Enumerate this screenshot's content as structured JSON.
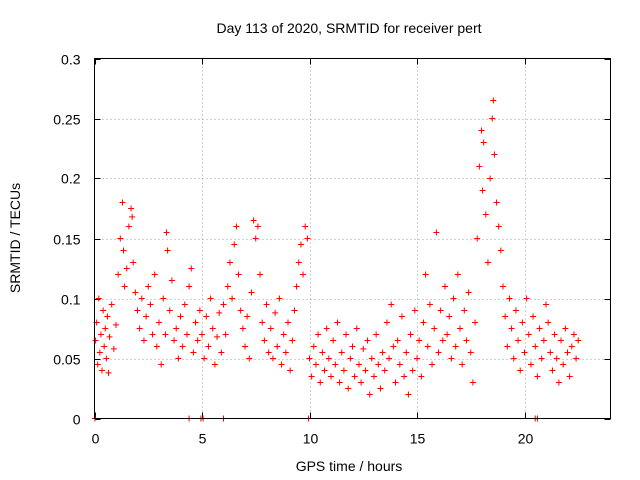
{
  "chart_data": {
    "type": "scatter",
    "title": "Day 113 of 2020, SRMTID for receiver pert",
    "xlabel": "GPS time / hours",
    "ylabel": "SRMTID / TECUs",
    "xlim": [
      0,
      24
    ],
    "ylim": [
      0,
      0.3
    ],
    "x_ticks": [
      0,
      5,
      10,
      15,
      20
    ],
    "x_tick_labels": [
      "0",
      "5",
      "10",
      "15",
      "20"
    ],
    "y_ticks": [
      0,
      0.05,
      0.1,
      0.15,
      0.2,
      0.25,
      0.3
    ],
    "y_tick_labels": [
      "0",
      "0.05",
      "0.1",
      "0.15",
      "0.2",
      "0.25",
      "0.3"
    ],
    "grid": true,
    "marker": "plus",
    "color": "#ff0000",
    "series": [
      {
        "name": "SRMTID",
        "points": [
          [
            0.05,
            0.065
          ],
          [
            0.1,
            0.08
          ],
          [
            0.15,
            0.045
          ],
          [
            0.2,
            0.1
          ],
          [
            0.25,
            0.055
          ],
          [
            0.3,
            0.07
          ],
          [
            0.35,
            0.04
          ],
          [
            0.4,
            0.09
          ],
          [
            0.45,
            0.06
          ],
          [
            0.5,
            0.075
          ],
          [
            0.55,
            0.05
          ],
          [
            0.6,
            0.085
          ],
          [
            0.65,
            0.038
          ],
          [
            0.7,
            0.068
          ],
          [
            0.8,
            0.095
          ],
          [
            0.9,
            0.058
          ],
          [
            1.0,
            0.078
          ],
          [
            1.1,
            0.12
          ],
          [
            1.2,
            0.15
          ],
          [
            1.3,
            0.18
          ],
          [
            1.35,
            0.14
          ],
          [
            1.4,
            0.11
          ],
          [
            1.5,
            0.125
          ],
          [
            1.6,
            0.16
          ],
          [
            1.7,
            0.175
          ],
          [
            1.75,
            0.168
          ],
          [
            1.8,
            0.13
          ],
          [
            1.9,
            0.105
          ],
          [
            2.0,
            0.09
          ],
          [
            2.1,
            0.075
          ],
          [
            2.2,
            0.1
          ],
          [
            2.3,
            0.065
          ],
          [
            2.4,
            0.085
          ],
          [
            2.5,
            0.11
          ],
          [
            2.6,
            0.095
          ],
          [
            2.7,
            0.07
          ],
          [
            2.8,
            0.12
          ],
          [
            2.9,
            0.06
          ],
          [
            3.0,
            0.08
          ],
          [
            3.1,
            0.045
          ],
          [
            3.2,
            0.1
          ],
          [
            3.3,
            0.07
          ],
          [
            3.35,
            0.155
          ],
          [
            3.4,
            0.14
          ],
          [
            3.5,
            0.09
          ],
          [
            3.6,
            0.115
          ],
          [
            3.7,
            0.065
          ],
          [
            3.8,
            0.075
          ],
          [
            3.9,
            0.05
          ],
          [
            4.0,
            0.085
          ],
          [
            4.1,
            0.06
          ],
          [
            4.2,
            0.095
          ],
          [
            4.3,
            0.07
          ],
          [
            4.4,
            0.11
          ],
          [
            4.5,
            0.125
          ],
          [
            4.6,
            0.055
          ],
          [
            4.7,
            0.08
          ],
          [
            4.8,
            0.065
          ],
          [
            4.9,
            0.09
          ],
          [
            5.0,
            0.07
          ],
          [
            5.1,
            0.05
          ],
          [
            5.2,
            0.085
          ],
          [
            5.3,
            0.06
          ],
          [
            5.4,
            0.1
          ],
          [
            5.5,
            0.075
          ],
          [
            5.6,
            0.045
          ],
          [
            5.7,
            0.068
          ],
          [
            5.8,
            0.088
          ],
          [
            5.9,
            0.055
          ],
          [
            6.0,
            0.095
          ],
          [
            6.1,
            0.07
          ],
          [
            6.2,
            0.11
          ],
          [
            6.3,
            0.13
          ],
          [
            6.4,
            0.1
          ],
          [
            6.5,
            0.145
          ],
          [
            6.6,
            0.16
          ],
          [
            6.7,
            0.12
          ],
          [
            6.8,
            0.09
          ],
          [
            6.9,
            0.075
          ],
          [
            7.0,
            0.06
          ],
          [
            7.1,
            0.085
          ],
          [
            7.2,
            0.05
          ],
          [
            7.3,
            0.105
          ],
          [
            7.4,
            0.165
          ],
          [
            7.5,
            0.15
          ],
          [
            7.6,
            0.16
          ],
          [
            7.7,
            0.12
          ],
          [
            7.8,
            0.08
          ],
          [
            7.9,
            0.065
          ],
          [
            8.0,
            0.095
          ],
          [
            8.1,
            0.055
          ],
          [
            8.2,
            0.075
          ],
          [
            8.3,
            0.05
          ],
          [
            8.4,
            0.088
          ],
          [
            8.5,
            0.06
          ],
          [
            8.6,
            0.1
          ],
          [
            8.7,
            0.045
          ],
          [
            8.8,
            0.07
          ],
          [
            8.9,
            0.055
          ],
          [
            9.0,
            0.08
          ],
          [
            9.1,
            0.04
          ],
          [
            9.2,
            0.065
          ],
          [
            9.3,
            0.09
          ],
          [
            9.4,
            0.11
          ],
          [
            9.5,
            0.13
          ],
          [
            9.6,
            0.145
          ],
          [
            9.7,
            0.12
          ],
          [
            9.8,
            0.16
          ],
          [
            9.9,
            0.15
          ],
          [
            10.0,
            0.05
          ],
          [
            10.1,
            0.035
          ],
          [
            10.2,
            0.06
          ],
          [
            10.3,
            0.045
          ],
          [
            10.4,
            0.07
          ],
          [
            10.5,
            0.03
          ],
          [
            10.6,
            0.055
          ],
          [
            10.7,
            0.04
          ],
          [
            10.8,
            0.075
          ],
          [
            10.9,
            0.05
          ],
          [
            11.0,
            0.035
          ],
          [
            11.1,
            0.065
          ],
          [
            11.2,
            0.045
          ],
          [
            11.3,
            0.08
          ],
          [
            11.4,
            0.03
          ],
          [
            11.5,
            0.055
          ],
          [
            11.6,
            0.04
          ],
          [
            11.7,
            0.07
          ],
          [
            11.8,
            0.025
          ],
          [
            11.9,
            0.05
          ],
          [
            12.0,
            0.06
          ],
          [
            12.1,
            0.035
          ],
          [
            12.2,
            0.075
          ],
          [
            12.3,
            0.045
          ],
          [
            12.4,
            0.03
          ],
          [
            12.5,
            0.058
          ],
          [
            12.6,
            0.04
          ],
          [
            12.7,
            0.065
          ],
          [
            12.8,
            0.02
          ],
          [
            12.9,
            0.05
          ],
          [
            13.0,
            0.035
          ],
          [
            13.1,
            0.07
          ],
          [
            13.2,
            0.045
          ],
          [
            13.3,
            0.025
          ],
          [
            13.4,
            0.055
          ],
          [
            13.5,
            0.04
          ],
          [
            13.6,
            0.08
          ],
          [
            13.7,
            0.05
          ],
          [
            13.8,
            0.095
          ],
          [
            13.9,
            0.06
          ],
          [
            14.0,
            0.03
          ],
          [
            14.1,
            0.065
          ],
          [
            14.2,
            0.045
          ],
          [
            14.3,
            0.085
          ],
          [
            14.4,
            0.035
          ],
          [
            14.5,
            0.055
          ],
          [
            14.6,
            0.02
          ],
          [
            14.7,
            0.07
          ],
          [
            14.8,
            0.04
          ],
          [
            14.9,
            0.09
          ],
          [
            15.0,
            0.05
          ],
          [
            15.1,
            0.065
          ],
          [
            15.2,
            0.035
          ],
          [
            15.3,
            0.08
          ],
          [
            15.4,
            0.12
          ],
          [
            15.5,
            0.06
          ],
          [
            15.6,
            0.095
          ],
          [
            15.7,
            0.045
          ],
          [
            15.8,
            0.075
          ],
          [
            15.9,
            0.155
          ],
          [
            16.0,
            0.055
          ],
          [
            16.1,
            0.09
          ],
          [
            16.2,
            0.065
          ],
          [
            16.3,
            0.11
          ],
          [
            16.4,
            0.07
          ],
          [
            16.5,
            0.085
          ],
          [
            16.6,
            0.05
          ],
          [
            16.7,
            0.1
          ],
          [
            16.8,
            0.06
          ],
          [
            16.9,
            0.12
          ],
          [
            17.0,
            0.075
          ],
          [
            17.1,
            0.045
          ],
          [
            17.2,
            0.09
          ],
          [
            17.3,
            0.065
          ],
          [
            17.4,
            0.105
          ],
          [
            17.5,
            0.055
          ],
          [
            17.6,
            0.03
          ],
          [
            17.7,
            0.08
          ],
          [
            17.8,
            0.15
          ],
          [
            17.9,
            0.21
          ],
          [
            18.0,
            0.24
          ],
          [
            18.05,
            0.19
          ],
          [
            18.1,
            0.23
          ],
          [
            18.2,
            0.17
          ],
          [
            18.3,
            0.13
          ],
          [
            18.4,
            0.2
          ],
          [
            18.5,
            0.25
          ],
          [
            18.55,
            0.265
          ],
          [
            18.6,
            0.22
          ],
          [
            18.7,
            0.18
          ],
          [
            18.8,
            0.16
          ],
          [
            18.9,
            0.14
          ],
          [
            19.0,
            0.11
          ],
          [
            19.1,
            0.085
          ],
          [
            19.2,
            0.06
          ],
          [
            19.3,
            0.1
          ],
          [
            19.4,
            0.075
          ],
          [
            19.5,
            0.05
          ],
          [
            19.6,
            0.09
          ],
          [
            19.7,
            0.065
          ],
          [
            19.8,
            0.04
          ],
          [
            19.9,
            0.08
          ],
          [
            20.0,
            0.055
          ],
          [
            20.1,
            0.1
          ],
          [
            20.2,
            0.07
          ],
          [
            20.3,
            0.045
          ],
          [
            20.4,
            0.085
          ],
          [
            20.5,
            0.06
          ],
          [
            20.6,
            0.035
          ],
          [
            20.7,
            0.075
          ],
          [
            20.8,
            0.05
          ],
          [
            20.9,
            0.065
          ],
          [
            21.0,
            0.095
          ],
          [
            21.1,
            0.08
          ],
          [
            21.2,
            0.055
          ],
          [
            21.3,
            0.04
          ],
          [
            21.4,
            0.07
          ],
          [
            21.5,
            0.05
          ],
          [
            21.6,
            0.03
          ],
          [
            21.7,
            0.065
          ],
          [
            21.8,
            0.045
          ],
          [
            21.9,
            0.075
          ],
          [
            22.0,
            0.055
          ],
          [
            22.1,
            0.035
          ],
          [
            22.2,
            0.06
          ],
          [
            22.3,
            0.07
          ],
          [
            22.4,
            0.05
          ],
          [
            22.5,
            0.065
          ],
          [
            0.02,
            0.0
          ],
          [
            4.4,
            0.0
          ],
          [
            4.95,
            0.0
          ],
          [
            5.05,
            0.0
          ],
          [
            6.0,
            0.0
          ],
          [
            9.95,
            0.0
          ],
          [
            20.5,
            0.0
          ],
          [
            20.6,
            0.0
          ]
        ]
      }
    ]
  }
}
